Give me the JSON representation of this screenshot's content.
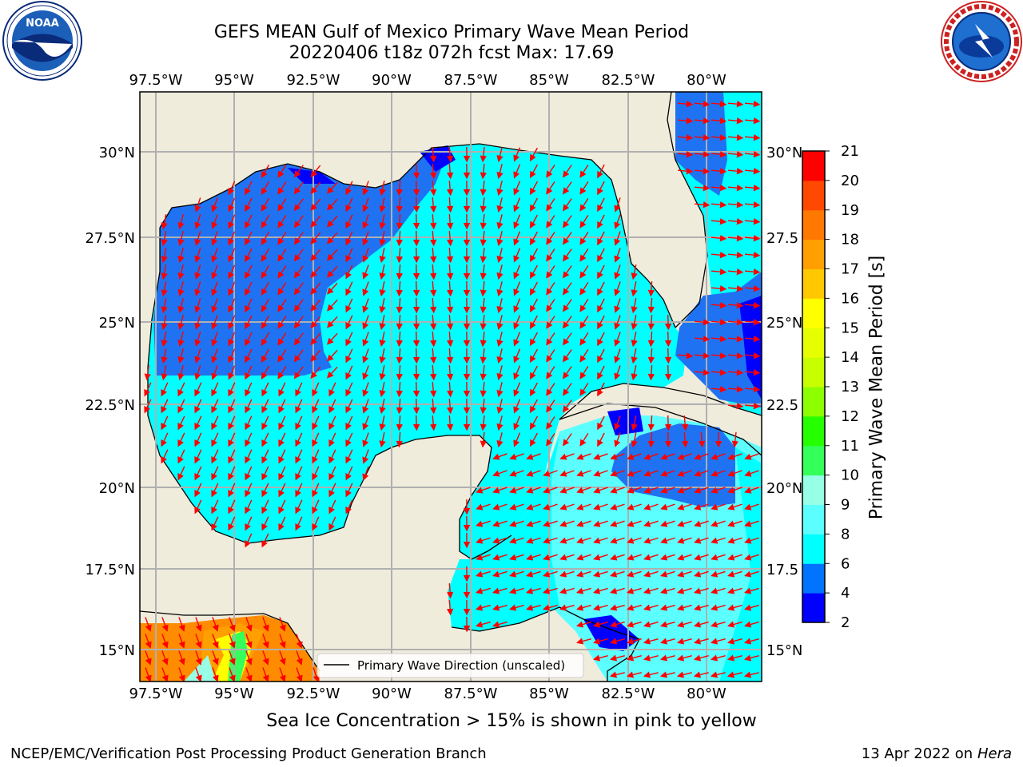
{
  "header": {
    "title_line1": "GEFS MEAN Gulf of Mexico Primary Wave Mean Period",
    "title_line2": "20220406 t18z 072h fcst   Max: 17.69"
  },
  "logos": {
    "left": {
      "icon": "noaa-logo",
      "text": "NOAA"
    },
    "right": {
      "icon": "nws-logo"
    }
  },
  "map": {
    "type": "filled-contour map with direction arrows",
    "lon_ticks_top": [
      "97.5°W",
      "95°W",
      "92.5°W",
      "90°W",
      "87.5°W",
      "85°W",
      "82.5°W",
      "80°W"
    ],
    "lon_ticks_bottom": [
      "97.5°W",
      "95°W",
      "92.5°W",
      "90°W",
      "87.5°W",
      "85°W",
      "82.5°W",
      "80°W"
    ],
    "lat_ticks_left": [
      "30°N",
      "27.5°N",
      "25°N",
      "22.5°N",
      "20°N",
      "17.5°N",
      "15°N"
    ],
    "lat_ticks_right": [
      "30°N",
      "27.5",
      "25°N",
      "22.5",
      "20°N",
      "17.5",
      "15°N"
    ],
    "legend_label": "Primary Wave Direction (unscaled)",
    "land_color": "#efecdc",
    "arrow_color": "#ff0000",
    "grid": true
  },
  "colorbar": {
    "title": "Primary Wave Mean Period [s]",
    "ticks": [
      "21",
      "20",
      "19",
      "18",
      "17",
      "16",
      "15",
      "14",
      "13",
      "12",
      "11",
      "10",
      "9",
      "8",
      "6",
      "4",
      "2"
    ],
    "colors": [
      "#0000ff",
      "#0073ff",
      "#00ffff",
      "#5cffff",
      "#96ffe6",
      "#35ff5a",
      "#25ff00",
      "#8cff00",
      "#c8ff00",
      "#e6ff00",
      "#ffff00",
      "#ffc800",
      "#ffa000",
      "#ff7800",
      "#ff4800",
      "#ff0000"
    ]
  },
  "footer": {
    "ice_note": "Sea Ice Concentration > 15% is shown in pink to yellow",
    "credit": "NCEP/EMC/Verification Post Processing Product Generation Branch",
    "date": "13 Apr 2022 on",
    "host": "Hera"
  }
}
